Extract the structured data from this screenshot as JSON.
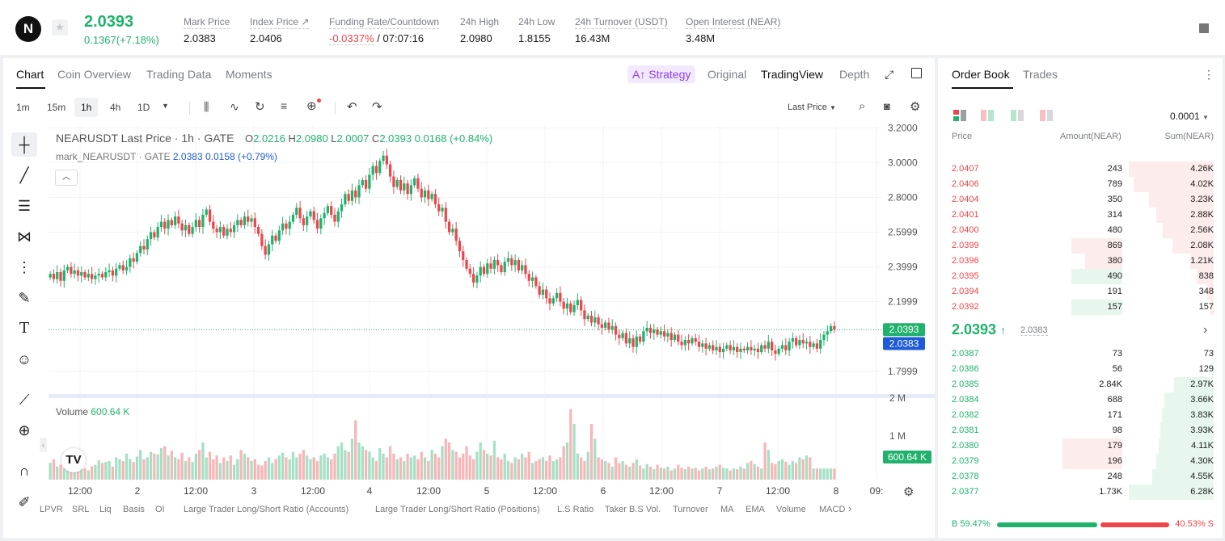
{
  "header": {
    "logo": "N",
    "price": "2.0393",
    "change": "0.1367(+7.18%)",
    "stats": [
      {
        "label": "Mark Price",
        "value": "2.0383"
      },
      {
        "label": "Index Price ↗",
        "value": "2.0406"
      },
      {
        "label": "Funding Rate/Countdown",
        "value_red": "-0.0337%",
        "value": " / 07:07:16"
      },
      {
        "label": "24h High",
        "value": "2.0980"
      },
      {
        "label": "24h Low",
        "value": "1.8155"
      },
      {
        "label": "24h Turnover (USDT)",
        "value": "16.43M"
      },
      {
        "label": "Open Interest (NEAR)",
        "value": "3.48M"
      }
    ]
  },
  "chart_tabs": [
    "Chart",
    "Coin Overview",
    "Trading Data",
    "Moments"
  ],
  "view_tabs": {
    "strategy": "A↑ Strategy",
    "original": "Original",
    "tradingview": "TradingView",
    "depth": "Depth"
  },
  "intervals": [
    "1m",
    "15m",
    "1h",
    "4h",
    "1D"
  ],
  "price_type": "Last Price",
  "legend": {
    "symbol": "NEARUSDT Last Price · 1h · GATE",
    "o_label": "O",
    "o": "2.0216",
    "h_label": "H",
    "h": "2.0980",
    "l_label": "L",
    "l": "2.0007",
    "c_label": "C",
    "c": "2.0393",
    "chg": "0.0168 (+0.84%)",
    "mark_label": "mark_NEARUSDT · GATE",
    "mark_vals": "2.0383  0.0158 (+0.79%)",
    "volume_label": "Volume",
    "volume_val": "600.64 K"
  },
  "chart_data": {
    "type": "candlestick",
    "y_ticks": [
      "3.2000",
      "3.0000",
      "2.8000",
      "2.5999",
      "2.3999",
      "2.1999",
      "1.7999"
    ],
    "y_range": [
      1.72,
      3.22
    ],
    "vol_ticks": [
      "2 M",
      "1 M"
    ],
    "x_ticks": [
      "12:00",
      "2",
      "12:00",
      "3",
      "12:00",
      "4",
      "12:00",
      "5",
      "12:00",
      "6",
      "12:00",
      "7",
      "12:00",
      "8",
      "09:"
    ],
    "last_price_tag": "2.0393",
    "mark_price_tag": "2.0383",
    "volume_tag": "600.64 K",
    "closes": [
      2.36,
      2.33,
      2.37,
      2.32,
      2.38,
      2.4,
      2.36,
      2.38,
      2.35,
      2.37,
      2.34,
      2.36,
      2.33,
      2.35,
      2.36,
      2.34,
      2.37,
      2.38,
      2.35,
      2.39,
      2.41,
      2.38,
      2.4,
      2.45,
      2.43,
      2.48,
      2.52,
      2.5,
      2.56,
      2.6,
      2.57,
      2.63,
      2.66,
      2.62,
      2.67,
      2.64,
      2.69,
      2.65,
      2.61,
      2.64,
      2.59,
      2.63,
      2.67,
      2.63,
      2.7,
      2.73,
      2.66,
      2.62,
      2.6,
      2.63,
      2.58,
      2.62,
      2.6,
      2.64,
      2.67,
      2.64,
      2.69,
      2.66,
      2.68,
      2.63,
      2.59,
      2.52,
      2.47,
      2.53,
      2.58,
      2.55,
      2.61,
      2.65,
      2.62,
      2.66,
      2.7,
      2.74,
      2.68,
      2.64,
      2.69,
      2.72,
      2.67,
      2.62,
      2.68,
      2.71,
      2.75,
      2.7,
      2.66,
      2.72,
      2.76,
      2.82,
      2.78,
      2.84,
      2.8,
      2.87,
      2.9,
      2.85,
      2.93,
      2.98,
      2.94,
      3.01,
      3.04,
      2.99,
      2.92,
      2.86,
      2.9,
      2.84,
      2.88,
      2.82,
      2.87,
      2.91,
      2.85,
      2.8,
      2.84,
      2.79,
      2.82,
      2.76,
      2.72,
      2.74,
      2.66,
      2.6,
      2.62,
      2.55,
      2.49,
      2.44,
      2.39,
      2.36,
      2.31,
      2.35,
      2.4,
      2.36,
      2.42,
      2.39,
      2.44,
      2.41,
      2.37,
      2.43,
      2.45,
      2.41,
      2.44,
      2.38,
      2.41,
      2.36,
      2.32,
      2.34,
      2.29,
      2.24,
      2.27,
      2.22,
      2.19,
      2.22,
      2.25,
      2.2,
      2.16,
      2.19,
      2.14,
      2.18,
      2.21,
      2.15,
      2.1,
      2.12,
      2.08,
      2.11,
      2.07,
      2.05,
      2.08,
      2.04,
      2.06,
      2.01,
      1.99,
      2.02,
      1.96,
      1.99,
      1.94,
      2.0,
      1.97,
      2.03,
      2.05,
      2.02,
      2.04,
      2.01,
      2.03,
      2.0,
      2.02,
      1.98,
      2.01,
      1.97,
      1.95,
      1.98,
      1.96,
      1.99,
      1.97,
      1.94,
      1.96,
      1.93,
      1.95,
      1.92,
      1.94,
      1.91,
      1.93,
      1.95,
      1.92,
      1.94,
      1.91,
      1.93,
      1.92,
      1.94,
      1.92,
      1.93,
      1.91,
      1.95,
      1.93,
      1.97,
      1.92,
      1.9,
      1.93,
      1.95,
      1.92,
      1.97,
      1.99,
      1.95,
      1.98,
      1.96,
      1.97,
      1.94,
      1.96,
      1.93,
      1.98,
      2.01,
      2.03,
      2.06,
      2.04
    ],
    "volumes": [
      0.45,
      0.55,
      0.35,
      0.4,
      0.3,
      0.38,
      0.5,
      0.28,
      0.42,
      0.33,
      0.3,
      0.25,
      0.36,
      0.4,
      0.52,
      0.45,
      0.48,
      0.5,
      0.35,
      0.6,
      0.55,
      0.5,
      0.7,
      0.55,
      0.48,
      0.62,
      0.8,
      0.55,
      0.6,
      0.75,
      0.7,
      0.68,
      0.85,
      0.9,
      0.65,
      0.78,
      0.6,
      0.55,
      0.72,
      0.5,
      0.6,
      0.48,
      0.7,
      0.8,
      1.0,
      0.6,
      0.75,
      0.55,
      0.65,
      0.45,
      0.6,
      0.5,
      0.65,
      0.4,
      0.55,
      0.8,
      0.7,
      0.6,
      0.5,
      0.55,
      0.4,
      0.38,
      0.5,
      0.6,
      0.45,
      0.55,
      0.65,
      0.72,
      0.6,
      0.55,
      0.75,
      0.6,
      0.7,
      0.8,
      0.65,
      0.55,
      0.6,
      0.5,
      0.65,
      0.7,
      0.6,
      0.55,
      0.7,
      0.9,
      1.0,
      0.8,
      0.75,
      1.1,
      1.6,
      1.0,
      0.9,
      0.8,
      0.75,
      0.6,
      0.5,
      0.85,
      0.7,
      0.6,
      0.9,
      0.7,
      0.55,
      0.6,
      0.5,
      0.7,
      0.6,
      0.65,
      0.55,
      0.75,
      0.6,
      0.5,
      0.8,
      0.7,
      0.6,
      0.9,
      1.1,
      1.0,
      0.8,
      0.75,
      0.6,
      0.7,
      0.9,
      0.65,
      0.55,
      0.75,
      1.0,
      0.8,
      0.7,
      0.65,
      1.05,
      0.6,
      0.55,
      0.7,
      0.5,
      0.45,
      0.6,
      0.55,
      0.7,
      0.6,
      0.75,
      0.45,
      0.5,
      0.55,
      0.6,
      0.5,
      0.65,
      0.5,
      0.55,
      0.6,
      0.9,
      1.0,
      1.9,
      1.5,
      0.7,
      0.6,
      0.5,
      0.75,
      1.5,
      1.1,
      0.6,
      0.55,
      0.5,
      0.45,
      0.35,
      0.6,
      0.45,
      0.5,
      0.4,
      0.35,
      0.45,
      0.55,
      0.38,
      0.3,
      0.42,
      0.35,
      0.28,
      0.4,
      0.32,
      0.3,
      0.35,
      0.25,
      0.3,
      0.4,
      0.32,
      0.28,
      0.35,
      0.3,
      0.32,
      0.25,
      0.3,
      0.35,
      0.28,
      0.3,
      0.35,
      0.4,
      0.32,
      0.3,
      0.25,
      0.3,
      0.28,
      0.35,
      0.3,
      0.45,
      0.5,
      0.42,
      0.35,
      0.3,
      1.0,
      0.8,
      0.45,
      0.42,
      0.5,
      0.55,
      0.48,
      0.4,
      0.5,
      0.45,
      0.6,
      0.55,
      0.65,
      0.6
    ]
  },
  "side_tools": [
    "crosshair-icon",
    "trendline-icon",
    "fib-icon",
    "pattern-icon",
    "projection-icon",
    "brush-icon",
    "text-icon",
    "emoji-icon",
    "ruler-icon",
    "zoom-icon",
    "magnet-icon",
    "pencil-icon"
  ],
  "indicators": [
    "LPVR",
    "SRL",
    "Liq",
    "Basis",
    "OI",
    "Large Trader Long/Short Ratio (Accounts)",
    "Large Trader Long/Short Ratio (Positions)",
    "L.S Ratio",
    "Taker B.S Vol.",
    "Turnover",
    "MA",
    "EMA",
    "Volume",
    "MACD"
  ],
  "orderbook": {
    "tabs": [
      "Order Book",
      "Trades"
    ],
    "precision": "0.0001",
    "headers": {
      "price": "Price",
      "amount": "Amount(NEAR)",
      "sum": "Sum(NEAR)"
    },
    "asks": [
      {
        "price": "2.0407",
        "amount": "243",
        "sum": "4.26K",
        "depth": 1.0,
        "amt_frac": 0
      },
      {
        "price": "2.0406",
        "amount": "789",
        "sum": "4.02K",
        "depth": 0.94,
        "amt_frac": 0
      },
      {
        "price": "2.0404",
        "amount": "350",
        "sum": "3.23K",
        "depth": 0.76,
        "amt_frac": 0
      },
      {
        "price": "2.0401",
        "amount": "314",
        "sum": "2.88K",
        "depth": 0.68,
        "amt_frac": 0
      },
      {
        "price": "2.0400",
        "amount": "480",
        "sum": "2.56K",
        "depth": 0.6,
        "amt_frac": 0
      },
      {
        "price": "2.0399",
        "amount": "869",
        "sum": "2.08K",
        "depth": 0.49,
        "amt_frac": 0.55
      },
      {
        "price": "2.0396",
        "amount": "380",
        "sum": "1.21K",
        "depth": 0.28,
        "amt_frac": 0.4
      },
      {
        "price": "2.0395",
        "amount": "490",
        "sum": "838",
        "depth": 0.2,
        "amt_frac": 0.55,
        "amt_green": true
      },
      {
        "price": "2.0394",
        "amount": "191",
        "sum": "348",
        "depth": 0.08,
        "amt_frac": 0
      },
      {
        "price": "2.0392",
        "amount": "157",
        "sum": "157",
        "depth": 0.04,
        "amt_frac": 0.55,
        "amt_green": true
      }
    ],
    "mid_price": "2.0393",
    "mid_arrow": "↑",
    "mid_mark": "2.0383",
    "bids": [
      {
        "price": "2.0387",
        "amount": "73",
        "sum": "73",
        "depth": 0.01,
        "amt_frac": 0
      },
      {
        "price": "2.0386",
        "amount": "56",
        "sum": "129",
        "depth": 0.02,
        "amt_frac": 0
      },
      {
        "price": "2.0385",
        "amount": "2.84K",
        "sum": "2.97K",
        "depth": 0.47,
        "amt_frac": 0
      },
      {
        "price": "2.0384",
        "amount": "688",
        "sum": "3.66K",
        "depth": 0.58,
        "amt_frac": 0
      },
      {
        "price": "2.0382",
        "amount": "171",
        "sum": "3.83K",
        "depth": 0.61,
        "amt_frac": 0
      },
      {
        "price": "2.0381",
        "amount": "98",
        "sum": "3.93K",
        "depth": 0.63,
        "amt_frac": 0
      },
      {
        "price": "2.0380",
        "amount": "179",
        "sum": "4.11K",
        "depth": 0.65,
        "amt_frac": 0.65,
        "amt_red": true
      },
      {
        "price": "2.0379",
        "amount": "196",
        "sum": "4.30K",
        "depth": 0.68,
        "amt_frac": 0.65,
        "amt_red": true
      },
      {
        "price": "2.0378",
        "amount": "248",
        "sum": "4.55K",
        "depth": 0.72,
        "amt_frac": 0
      },
      {
        "price": "2.0377",
        "amount": "1.73K",
        "sum": "6.28K",
        "depth": 1.0,
        "amt_frac": 0
      }
    ],
    "buy_label": "B 59.47%",
    "sell_label": "40.53% S",
    "buy_frac": 0.5947
  },
  "colors": {
    "up": "#20b26c",
    "down": "#ef454a",
    "blue": "#1e5bd8"
  }
}
